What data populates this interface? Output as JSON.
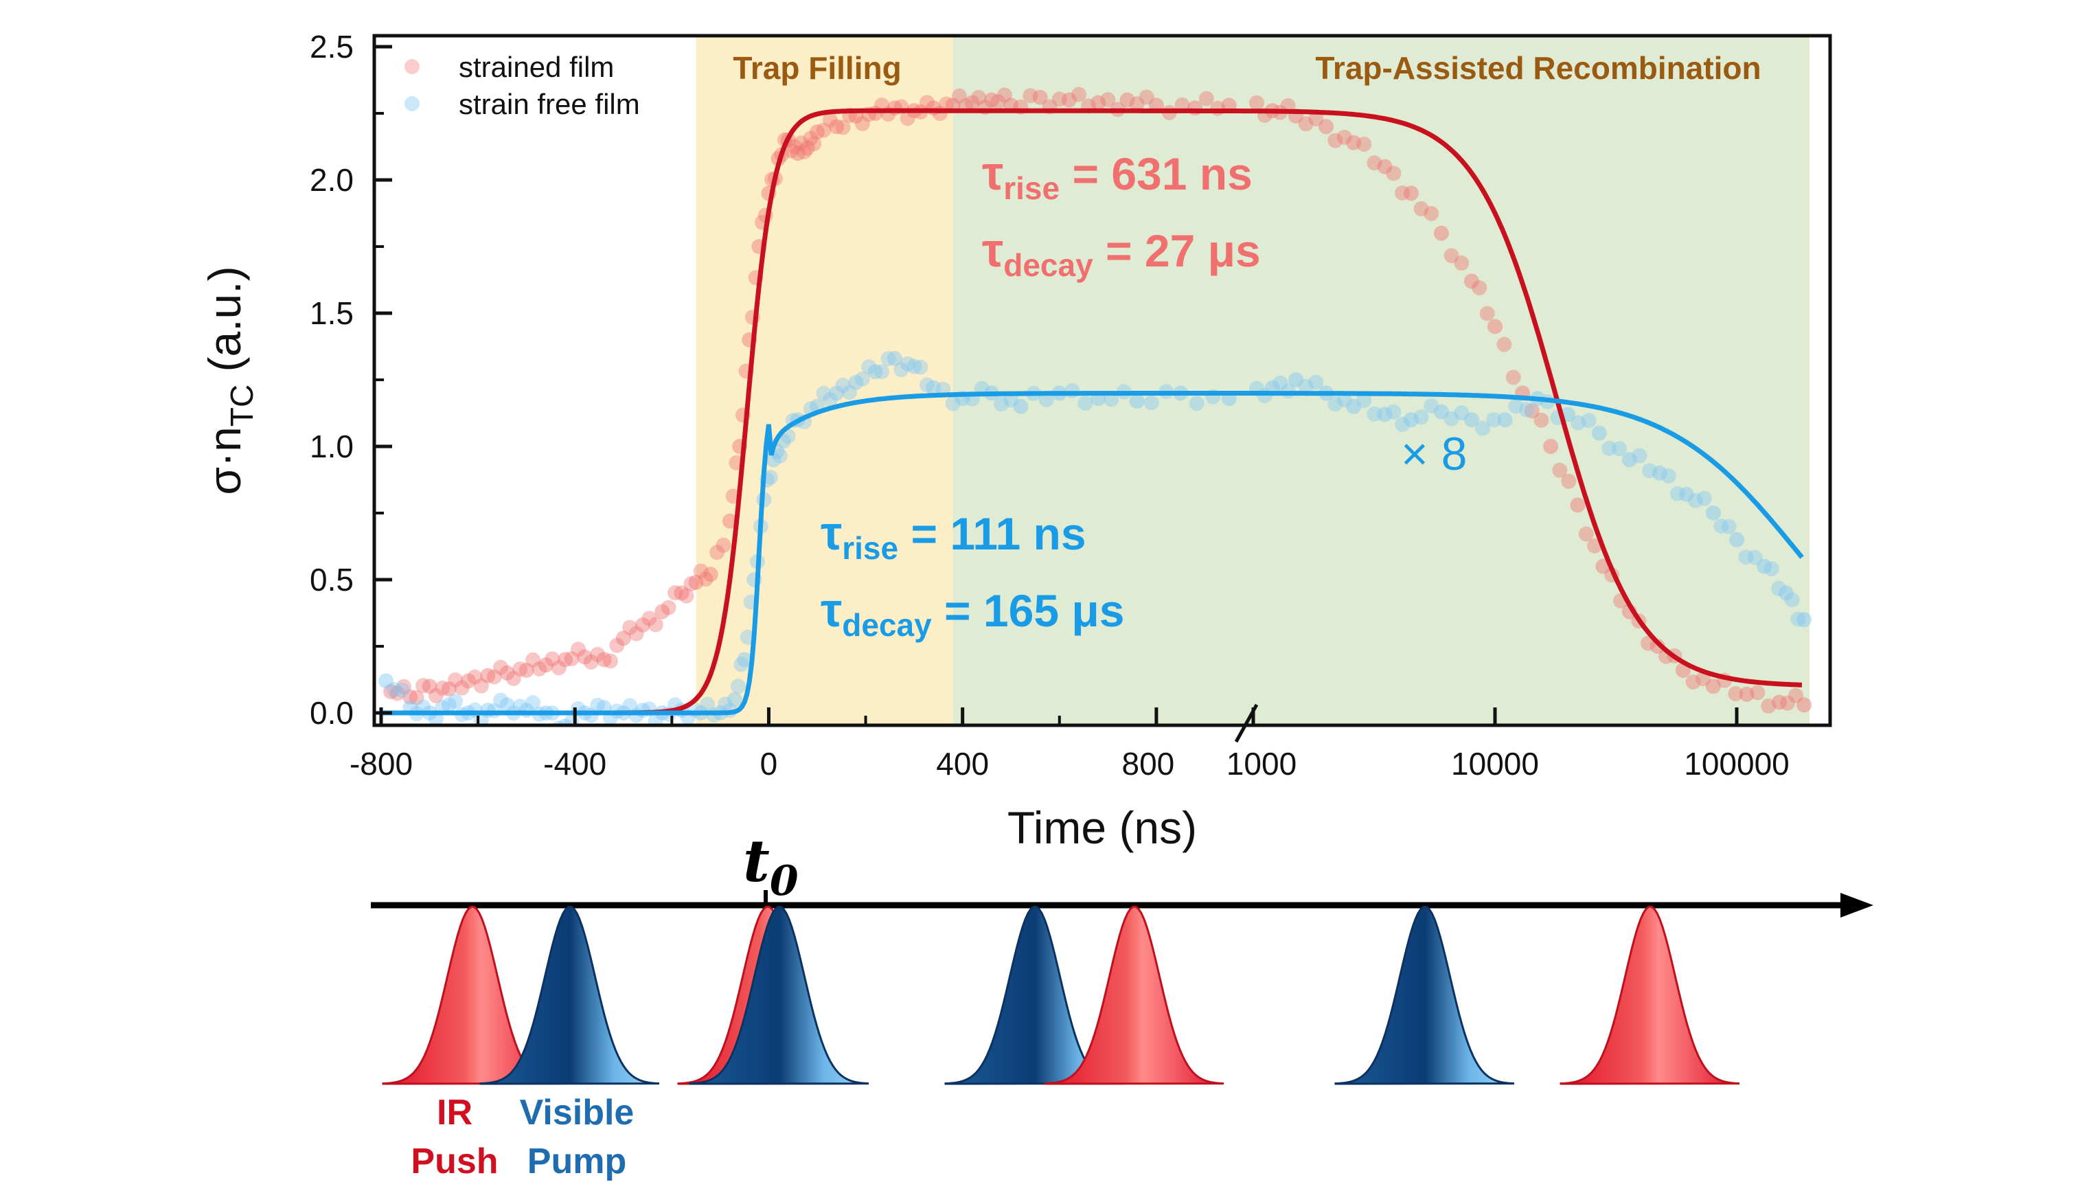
{
  "chart_data": {
    "type": "scatter",
    "xlabel": "Time (ns)",
    "ylabel_main": "σ·n",
    "ylabel_sub": "TC",
    "ylabel_unit": " (a.u.)",
    "ylim": [
      0,
      2.5
    ],
    "yticks": [
      "0.0",
      "0.5",
      "1.0",
      "1.5",
      "2.0",
      "2.5"
    ],
    "ytick_values": [
      0,
      0.5,
      1.0,
      1.5,
      2.0,
      2.5
    ],
    "x_axis_segments": [
      {
        "scale": "linear",
        "range": [
          -800,
          1000
        ]
      },
      {
        "scale": "log",
        "range": [
          1000,
          200000
        ]
      }
    ],
    "xticks": [
      {
        "value": -800,
        "label": "-800"
      },
      {
        "value": -400,
        "label": "-400"
      },
      {
        "value": 0,
        "label": "0"
      },
      {
        "value": 400,
        "label": "400"
      },
      {
        "value": 800,
        "label": "800"
      },
      {
        "value": 1000,
        "label": "1000"
      },
      {
        "value": 10000,
        "label": "10000"
      },
      {
        "value": 100000,
        "label": "100000"
      }
    ],
    "regions": [
      {
        "label": "Trap Filling",
        "x_range": [
          -150,
          380
        ],
        "color": "#fcefc8"
      },
      {
        "label": "Trap-Assisted Recombination",
        "x_range": [
          380,
          200000
        ],
        "color": "#e0ebd3"
      }
    ],
    "series": [
      {
        "name": "strained film",
        "color": "#f07070",
        "fit_color": "#c8101e",
        "tau_rise": "631 ns",
        "tau_decay": "27 μs",
        "points": [
          [
            -780,
            0.08
          ],
          [
            -740,
            0.06
          ],
          [
            -700,
            0.1
          ],
          [
            -660,
            0.09
          ],
          [
            -620,
            0.12
          ],
          [
            -580,
            0.14
          ],
          [
            -540,
            0.15
          ],
          [
            -500,
            0.16
          ],
          [
            -460,
            0.18
          ],
          [
            -420,
            0.2
          ],
          [
            -380,
            0.21
          ],
          [
            -340,
            0.2
          ],
          [
            -300,
            0.28
          ],
          [
            -260,
            0.33
          ],
          [
            -220,
            0.38
          ],
          [
            -180,
            0.45
          ],
          [
            -150,
            0.49
          ],
          [
            -120,
            0.52
          ],
          [
            -80,
            0.72
          ],
          [
            -60,
            1.0
          ],
          [
            -40,
            1.4
          ],
          [
            -20,
            1.75
          ],
          [
            0,
            1.95
          ],
          [
            20,
            2.08
          ],
          [
            40,
            2.15
          ],
          [
            60,
            2.1
          ],
          [
            80,
            2.12
          ],
          [
            100,
            2.18
          ],
          [
            140,
            2.2
          ],
          [
            180,
            2.24
          ],
          [
            220,
            2.25
          ],
          [
            260,
            2.27
          ],
          [
            300,
            2.26
          ],
          [
            340,
            2.27
          ],
          [
            380,
            2.28
          ],
          [
            420,
            2.29
          ],
          [
            460,
            2.3
          ],
          [
            500,
            2.28
          ],
          [
            560,
            2.31
          ],
          [
            620,
            2.3
          ],
          [
            680,
            2.29
          ],
          [
            740,
            2.3
          ],
          [
            800,
            2.28
          ],
          [
            880,
            2.27
          ],
          [
            950,
            2.28
          ],
          [
            1200,
            2.26
          ],
          [
            1500,
            2.24
          ],
          [
            2000,
            2.2
          ],
          [
            2600,
            2.14
          ],
          [
            3500,
            2.05
          ],
          [
            4500,
            1.95
          ],
          [
            6000,
            1.8
          ],
          [
            8000,
            1.62
          ],
          [
            10000,
            1.45
          ],
          [
            13000,
            1.2
          ],
          [
            17000,
            1.0
          ],
          [
            22000,
            0.78
          ],
          [
            28000,
            0.55
          ],
          [
            36000,
            0.38
          ],
          [
            47000,
            0.25
          ],
          [
            60000,
            0.16
          ],
          [
            80000,
            0.1
          ],
          [
            110000,
            0.07
          ],
          [
            150000,
            0.04
          ],
          [
            190000,
            0.03
          ]
        ],
        "fit": {
          "baseline": 0.0,
          "amplitude": 2.26,
          "final": 0.1
        }
      },
      {
        "name": "strain free film",
        "color": "#7dc5f5",
        "fit_color": "#1a9be6",
        "tau_rise": "111 ns",
        "tau_decay": "165 μs",
        "scale_factor": "× 8",
        "points": [
          [
            -790,
            0.12
          ],
          [
            -740,
            0.02
          ],
          [
            -700,
            0.0
          ],
          [
            -660,
            0.03
          ],
          [
            -620,
            0.0
          ],
          [
            -580,
            0.01
          ],
          [
            -540,
            0.03
          ],
          [
            -500,
            0.01
          ],
          [
            -460,
            0.0
          ],
          [
            -420,
            -0.05
          ],
          [
            -380,
            0.0
          ],
          [
            -340,
            0.02
          ],
          [
            -300,
            0.0
          ],
          [
            -260,
            0.01
          ],
          [
            -220,
            0.0
          ],
          [
            -180,
            0.01
          ],
          [
            -140,
            0.0
          ],
          [
            -100,
            0.0
          ],
          [
            -70,
            0.05
          ],
          [
            -50,
            0.2
          ],
          [
            -30,
            0.5
          ],
          [
            -10,
            0.8
          ],
          [
            10,
            0.95
          ],
          [
            30,
            1.02
          ],
          [
            60,
            1.1
          ],
          [
            100,
            1.15
          ],
          [
            140,
            1.2
          ],
          [
            180,
            1.24
          ],
          [
            220,
            1.28
          ],
          [
            260,
            1.33
          ],
          [
            300,
            1.3
          ],
          [
            340,
            1.22
          ],
          [
            400,
            1.18
          ],
          [
            460,
            1.2
          ],
          [
            520,
            1.15
          ],
          [
            600,
            1.2
          ],
          [
            680,
            1.18
          ],
          [
            760,
            1.17
          ],
          [
            850,
            1.2
          ],
          [
            950,
            1.18
          ],
          [
            1200,
            1.22
          ],
          [
            1500,
            1.25
          ],
          [
            2000,
            1.2
          ],
          [
            2600,
            1.15
          ],
          [
            3500,
            1.12
          ],
          [
            4500,
            1.1
          ],
          [
            6000,
            1.13
          ],
          [
            8000,
            1.1
          ],
          [
            11000,
            1.1
          ],
          [
            15000,
            1.18
          ],
          [
            20000,
            1.12
          ],
          [
            27000,
            1.05
          ],
          [
            36000,
            0.95
          ],
          [
            48000,
            0.9
          ],
          [
            62000,
            0.82
          ],
          [
            80000,
            0.75
          ],
          [
            100000,
            0.65
          ],
          [
            130000,
            0.55
          ],
          [
            160000,
            0.45
          ],
          [
            190000,
            0.35
          ]
        ],
        "fit": {
          "baseline": 0.0,
          "amplitude": 1.2
        }
      }
    ],
    "annotations": {
      "red_tau_rise_symbol": "τ",
      "red_tau_rise_sub": "rise",
      "red_tau_rise_value": " = 631 ns",
      "red_tau_decay_symbol": "τ",
      "red_tau_decay_sub": "decay",
      "red_tau_decay_value": " = 27 μs",
      "blue_tau_rise_symbol": "τ",
      "blue_tau_rise_sub": "rise",
      "blue_tau_rise_value": " = 111 ns",
      "blue_tau_decay_symbol": "τ",
      "blue_tau_decay_sub": "decay",
      "blue_tau_decay_value": " = 165 μs"
    }
  },
  "timeline": {
    "t0_label": "t",
    "t0_sub": "0",
    "ir_label_line1": "IR",
    "ir_label_line2": "Push",
    "vis_label_line1": "Visible",
    "vis_label_line2": "Pump",
    "ir_color": "#d01020",
    "vis_color": "#1f6db0"
  }
}
